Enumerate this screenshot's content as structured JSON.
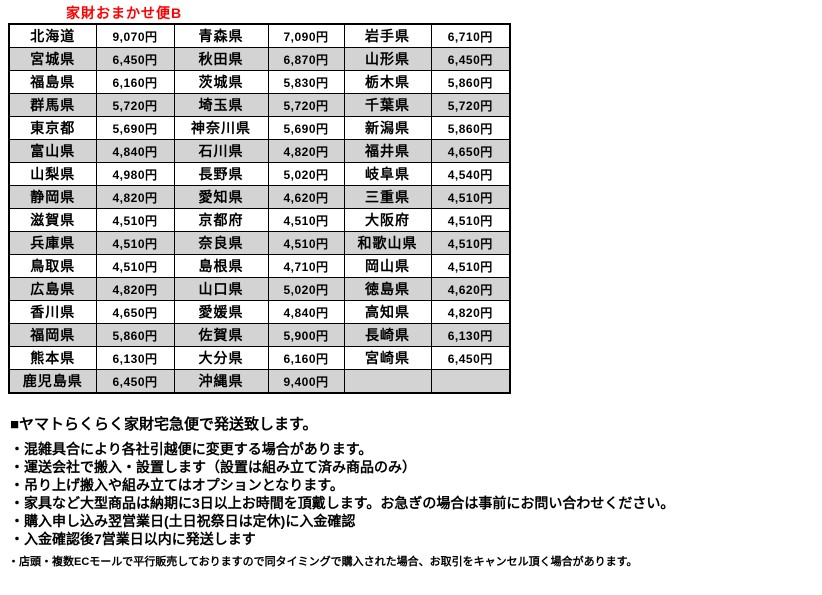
{
  "title": "家財おまかせ便B",
  "table": {
    "rows": [
      [
        {
          "pref": "北海道",
          "price": "9,070円"
        },
        {
          "pref": "青森県",
          "price": "7,090円"
        },
        {
          "pref": "岩手県",
          "price": "6,710円"
        }
      ],
      [
        {
          "pref": "宮城県",
          "price": "6,450円"
        },
        {
          "pref": "秋田県",
          "price": "6,870円"
        },
        {
          "pref": "山形県",
          "price": "6,450円"
        }
      ],
      [
        {
          "pref": "福島県",
          "price": "6,160円"
        },
        {
          "pref": "茨城県",
          "price": "5,830円"
        },
        {
          "pref": "栃木県",
          "price": "5,860円"
        }
      ],
      [
        {
          "pref": "群馬県",
          "price": "5,720円"
        },
        {
          "pref": "埼玉県",
          "price": "5,720円"
        },
        {
          "pref": "千葉県",
          "price": "5,720円"
        }
      ],
      [
        {
          "pref": "東京都",
          "price": "5,690円"
        },
        {
          "pref": "神奈川県",
          "price": "5,690円"
        },
        {
          "pref": "新潟県",
          "price": "5,860円"
        }
      ],
      [
        {
          "pref": "富山県",
          "price": "4,840円"
        },
        {
          "pref": "石川県",
          "price": "4,820円"
        },
        {
          "pref": "福井県",
          "price": "4,650円"
        }
      ],
      [
        {
          "pref": "山梨県",
          "price": "4,980円"
        },
        {
          "pref": "長野県",
          "price": "5,020円"
        },
        {
          "pref": "岐阜県",
          "price": "4,540円"
        }
      ],
      [
        {
          "pref": "静岡県",
          "price": "4,820円"
        },
        {
          "pref": "愛知県",
          "price": "4,620円"
        },
        {
          "pref": "三重県",
          "price": "4,510円"
        }
      ],
      [
        {
          "pref": "滋賀県",
          "price": "4,510円"
        },
        {
          "pref": "京都府",
          "price": "4,510円"
        },
        {
          "pref": "大阪府",
          "price": "4,510円"
        }
      ],
      [
        {
          "pref": "兵庫県",
          "price": "4,510円"
        },
        {
          "pref": "奈良県",
          "price": "4,510円"
        },
        {
          "pref": "和歌山県",
          "price": "4,510円"
        }
      ],
      [
        {
          "pref": "鳥取県",
          "price": "4,510円"
        },
        {
          "pref": "島根県",
          "price": "4,710円"
        },
        {
          "pref": "岡山県",
          "price": "4,510円"
        }
      ],
      [
        {
          "pref": "広島県",
          "price": "4,820円"
        },
        {
          "pref": "山口県",
          "price": "5,020円"
        },
        {
          "pref": "徳島県",
          "price": "4,620円"
        }
      ],
      [
        {
          "pref": "香川県",
          "price": "4,650円"
        },
        {
          "pref": "愛媛県",
          "price": "4,840円"
        },
        {
          "pref": "高知県",
          "price": "4,820円"
        }
      ],
      [
        {
          "pref": "福岡県",
          "price": "5,860円"
        },
        {
          "pref": "佐賀県",
          "price": "5,900円"
        },
        {
          "pref": "長崎県",
          "price": "6,130円"
        }
      ],
      [
        {
          "pref": "熊本県",
          "price": "6,130円"
        },
        {
          "pref": "大分県",
          "price": "6,160円"
        },
        {
          "pref": "宮崎県",
          "price": "6,450円"
        }
      ],
      [
        {
          "pref": "鹿児島県",
          "price": "6,450円"
        },
        {
          "pref": "沖縄県",
          "price": "9,400円"
        },
        {
          "pref": "",
          "price": ""
        }
      ]
    ]
  },
  "notes": {
    "heading": "■ヤマトらくらく家財宅急便で発送致します。",
    "bullets": [
      "・混雑具合により各社引越便に変更する場合があります。",
      "・運送会社で搬入・設置します（設置は組み立て済み商品のみ）",
      "・吊り上げ搬入や組み立てはオプションとなります。",
      "・家具など大型商品は納期に3日以上お時間を頂戴します。お急ぎの場合は事前にお問い合わせください。",
      "・購入申し込み翌営業日(土日祝祭日は定休)に入金確認",
      "・入金確認後7営業日以内に発送します"
    ],
    "small_note": "・店頭・複数ECモールで平行販売しておりますので同タイミングで購入された場合、お取引をキャンセル頂く場合があります。"
  },
  "colors": {
    "title_text": "#ff0000",
    "body_text": "#000000",
    "background": "#ffffff",
    "table_border": "#000000",
    "table_alt_row": "#d3d3d3"
  }
}
